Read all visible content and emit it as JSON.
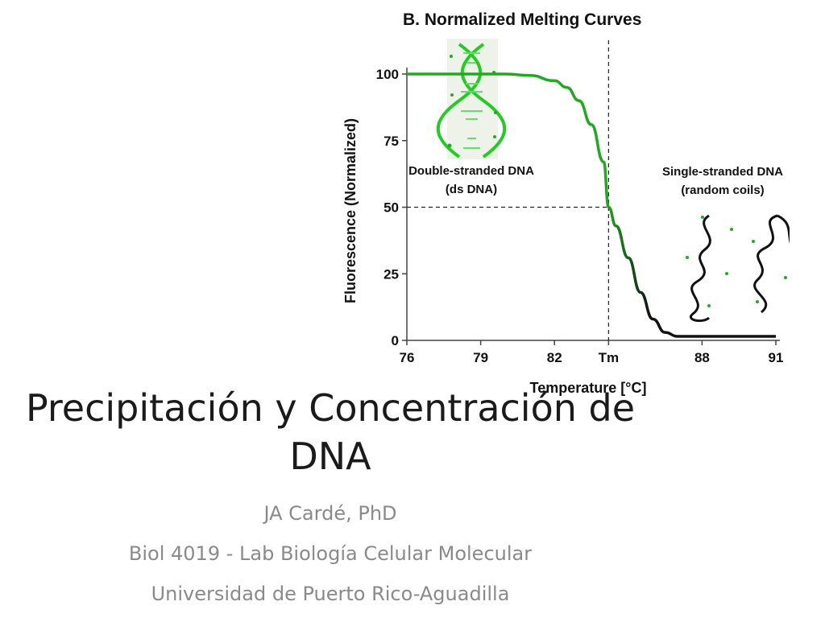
{
  "slide": {
    "title": "Precipitación y Concentración de DNA",
    "subtitles": [
      "JA Cardé, PhD",
      "Biol 4019 - Lab Biología Celular Molecular",
      "Universidad de Puerto Rico-Aguadilla"
    ]
  },
  "chart_data": {
    "type": "line",
    "title": "B.   Normalized Melting Curves",
    "xlabel": "Temperature  [°C]",
    "ylabel": "Fluorescence (Normalized)",
    "xlim": [
      76,
      91
    ],
    "ylim": [
      0,
      100
    ],
    "x_ticks": [
      "76",
      "79",
      "82",
      "Tm",
      "88",
      "91"
    ],
    "y_ticks": [
      "0",
      "25",
      "50",
      "75",
      "100"
    ],
    "tm": 84.2,
    "grid": false,
    "series": [
      {
        "color": "#1faa1f",
        "x": [
          76,
          78,
          80,
          81,
          82,
          82.5,
          83,
          83.5,
          84,
          84.2,
          84.5,
          85,
          85.5,
          86,
          86.5,
          87,
          88,
          89,
          90,
          91
        ],
        "y": [
          100,
          100,
          100,
          99.5,
          97.5,
          95,
          90,
          81,
          67,
          50,
          43,
          31,
          18,
          8,
          3,
          1.5,
          1.5,
          1.5,
          1.5,
          1.5
        ]
      }
    ],
    "annotations": [
      {
        "text": "Double-stranded DNA",
        "group": "ds"
      },
      {
        "text": "(ds DNA)",
        "group": "ds"
      },
      {
        "text": "Single-stranded DNA",
        "group": "ss"
      },
      {
        "text": "(random coils)",
        "group": "ss"
      }
    ]
  },
  "colors": {
    "curve_green": "#1faa1f",
    "curve_dark": "#111111",
    "helix_green": "#22cc22",
    "subtitle_gray": "#8a8a8a"
  }
}
